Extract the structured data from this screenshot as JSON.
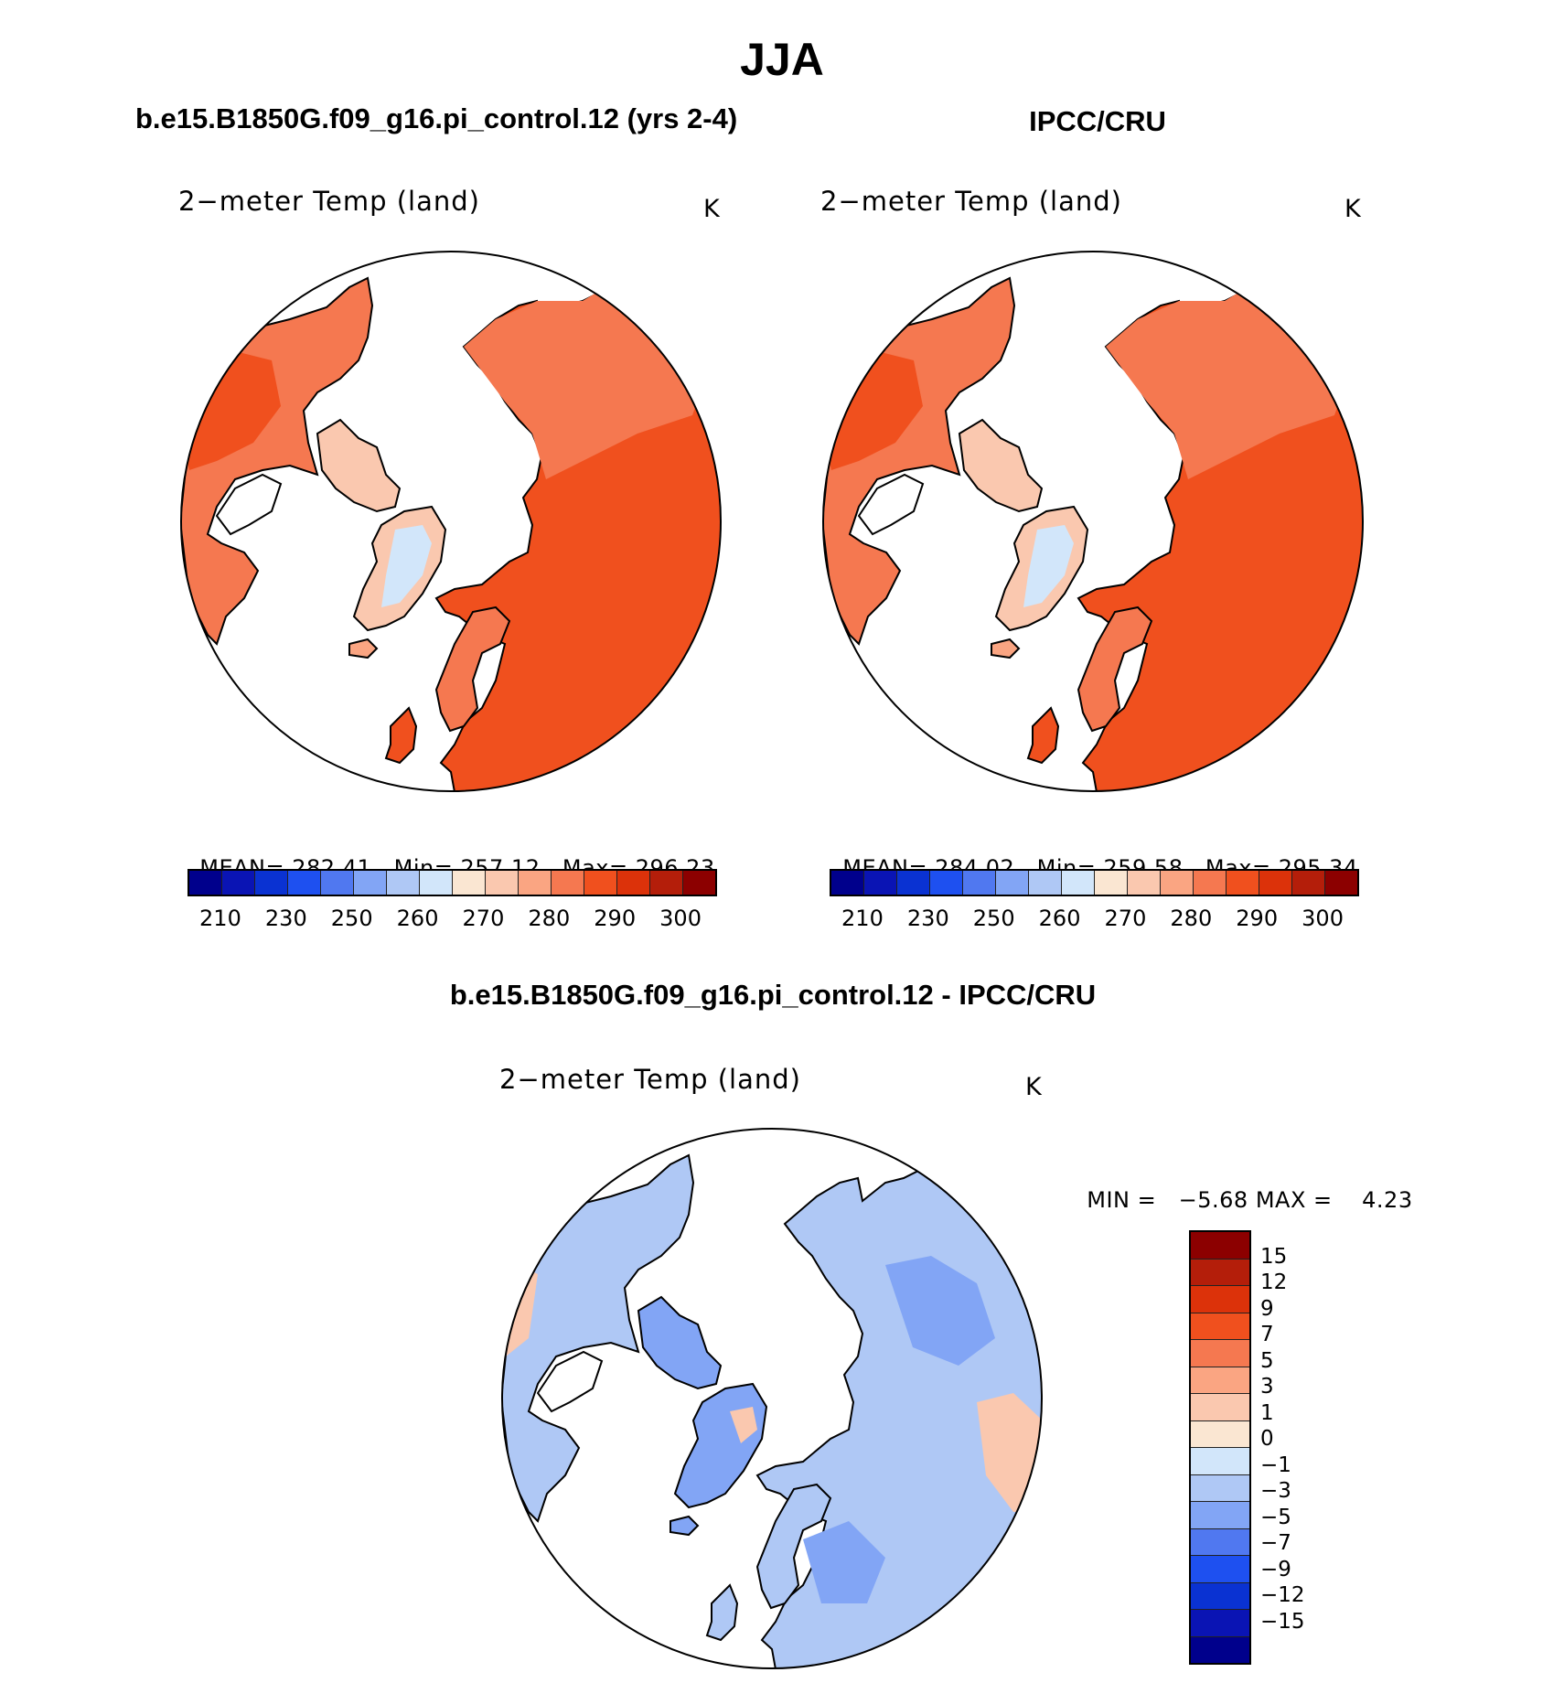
{
  "title": "JJA",
  "panels": {
    "model": {
      "title": "b.e15.B1850G.f09_g16.pi_control.12 (yrs 2-4)",
      "variable": "2−meter Temp (land)",
      "units": "K",
      "mean_label": "MEAN=",
      "mean": "282.41",
      "min_label": "Min=",
      "min": "257.12",
      "max_label": "Max=",
      "max": "296.23"
    },
    "obs": {
      "title": "IPCC/CRU",
      "variable": "2−meter Temp (land)",
      "units": "K",
      "mean_label": "MEAN=",
      "mean": "284.02",
      "min_label": "Min=",
      "min": "259.58",
      "max_label": "Max=",
      "max": "295.34"
    },
    "diff": {
      "title": "b.e15.B1850G.f09_g16.pi_control.12 - IPCC/CRU",
      "variable": "2−meter Temp (land)",
      "units": "K",
      "min_label": "MIN =",
      "min": "−5.68",
      "max_label": "MAX =",
      "max": "4.23"
    }
  },
  "abs_colorbar": {
    "colors": [
      "#00008c",
      "#0a14b4",
      "#0a32d2",
      "#1e50f0",
      "#5078f0",
      "#82a5f5",
      "#afc8f5",
      "#d2e6fa",
      "#fae6d2",
      "#fac8af",
      "#faa582",
      "#f57850",
      "#f0501e",
      "#dc320a",
      "#b41e0a",
      "#8c0000"
    ],
    "tick_labels": [
      "210",
      "230",
      "250",
      "260",
      "270",
      "280",
      "290",
      "300"
    ]
  },
  "diff_colorbar": {
    "colors": [
      "#8c0000",
      "#b41e0a",
      "#dc320a",
      "#f0501e",
      "#f57850",
      "#faa582",
      "#fac8af",
      "#fae6d2",
      "#d2e6fa",
      "#afc8f5",
      "#82a5f5",
      "#5078f0",
      "#1e50f0",
      "#0a32d2",
      "#0a14b4",
      "#00008c"
    ],
    "tick_labels": [
      "15",
      "12",
      "9",
      "7",
      "5",
      "3",
      "1",
      "0",
      "−1",
      "−3",
      "−5",
      "−7",
      "−9",
      "−12",
      "−15"
    ]
  },
  "map_colors": {
    "ocean": "#ffffff",
    "warm": "#f0501e",
    "mid": "#f57850",
    "cool": "#faa582",
    "cold": "#fac8af",
    "ice": "#d2e6fa",
    "diff_base": "#afc8f5",
    "diff_low": "#82a5f5",
    "diff_high": "#fac8af"
  }
}
